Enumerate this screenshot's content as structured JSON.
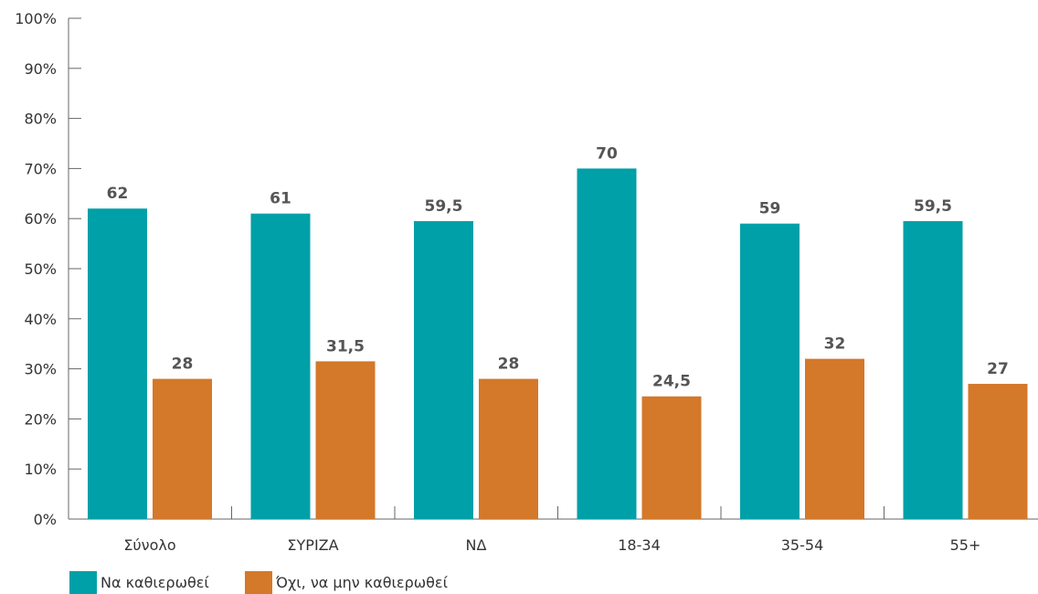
{
  "chart_data": {
    "type": "bar",
    "categories": [
      "Σύνολο",
      "ΣΥΡΙΖΑ",
      "ΝΔ",
      "18-34",
      "35-54",
      "55+"
    ],
    "series": [
      {
        "name": "Να καθιερωθεί",
        "color": "#00a0a8",
        "values": [
          62,
          61,
          59.5,
          70,
          59,
          59.5
        ],
        "labels": [
          "62",
          "61",
          "59,5",
          "70",
          "59",
          "59,5"
        ]
      },
      {
        "name": "Όχι, να μην καθιερωθεί",
        "color": "#d4782a",
        "values": [
          28,
          31.5,
          28,
          24.5,
          32,
          27
        ],
        "labels": [
          "28",
          "31,5",
          "28",
          "24,5",
          "32",
          "27"
        ]
      }
    ],
    "ylim": [
      0,
      100
    ],
    "yticks": [
      0,
      10,
      20,
      30,
      40,
      50,
      60,
      70,
      80,
      90,
      100
    ],
    "ytick_labels": [
      "0%",
      "10%",
      "20%",
      "30%",
      "40%",
      "50%",
      "60%",
      "70%",
      "80%",
      "90%",
      "100%"
    ],
    "grid": false,
    "legend_position": "bottom-left",
    "title": "",
    "xlabel": "",
    "ylabel": ""
  }
}
